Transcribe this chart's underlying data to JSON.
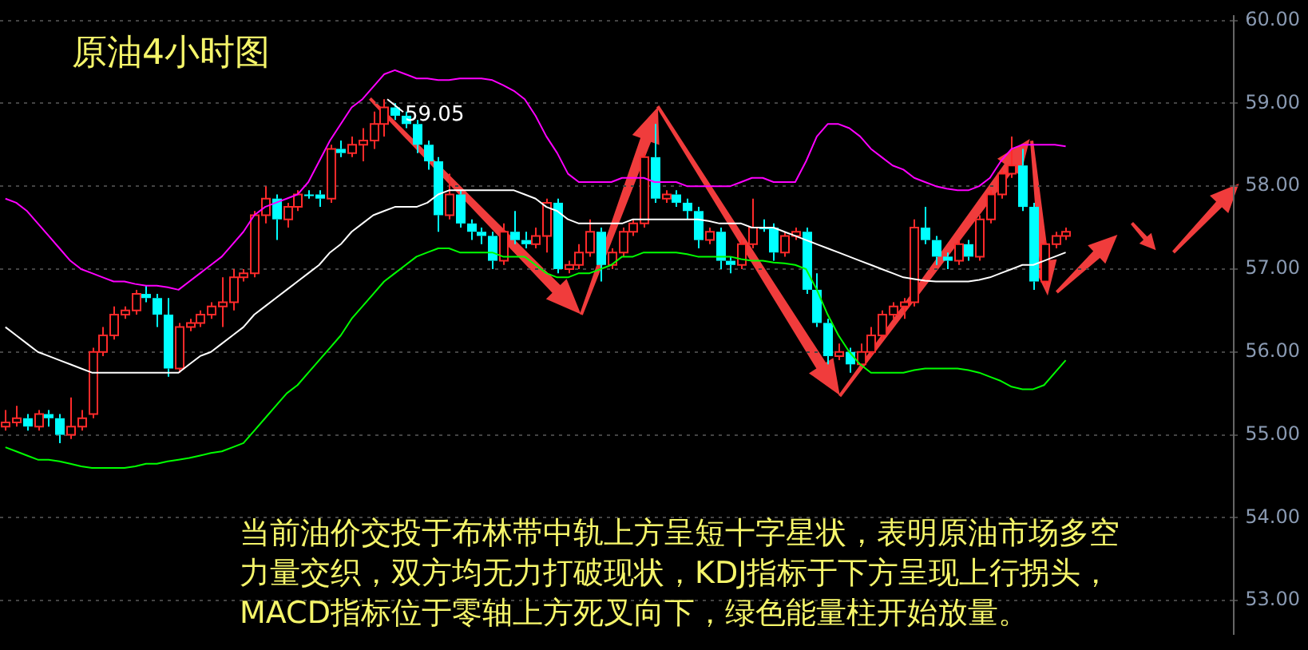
{
  "chart_data": {
    "type": "candlestick",
    "title": "原油4小时图",
    "annotations": [
      "59.05",
      "当前油价交投于布林带中轨上方呈短十字星状，表明原油市场多空力量交织，双方均无力打破现状，KDJ指标于下方呈现上行拐头，MACD指标位于零轴上方死叉向下，绿色能量柱开始放量。"
    ],
    "categories": [
      null,
      null,
      null,
      null,
      null,
      null,
      null,
      null,
      null,
      null,
      null,
      null,
      null,
      null,
      null,
      null,
      null,
      null,
      null,
      null,
      null,
      null,
      null,
      null,
      null,
      null,
      null,
      null,
      null,
      null,
      null,
      null,
      null,
      null,
      null,
      null,
      null,
      null,
      null,
      null,
      null,
      null,
      null,
      null,
      null,
      null,
      null,
      null,
      null,
      null,
      null,
      null,
      null,
      null,
      null,
      null,
      null,
      null,
      null,
      null,
      null,
      null,
      null,
      null,
      null,
      null,
      null,
      null,
      null,
      null,
      null,
      null,
      null,
      null,
      null,
      null,
      null,
      null,
      null,
      null,
      null,
      null,
      null,
      null,
      null,
      null,
      null,
      null,
      null,
      null,
      null,
      null,
      null,
      null,
      null,
      null,
      null,
      null,
      null
    ],
    "ohlc": [
      [
        55.1,
        55.3,
        55.05,
        55.15
      ],
      [
        55.15,
        55.35,
        55.1,
        55.2
      ],
      [
        55.2,
        55.25,
        55.05,
        55.1
      ],
      [
        55.1,
        55.3,
        55.05,
        55.25
      ],
      [
        55.25,
        55.3,
        55.1,
        55.2
      ],
      [
        55.2,
        55.25,
        54.9,
        55.0
      ],
      [
        55.0,
        55.45,
        54.95,
        55.1
      ],
      [
        55.1,
        55.3,
        55.05,
        55.2
      ],
      [
        55.25,
        56.05,
        55.2,
        56.0
      ],
      [
        56.0,
        56.3,
        55.95,
        56.2
      ],
      [
        56.2,
        56.55,
        56.15,
        56.45
      ],
      [
        56.45,
        56.55,
        56.4,
        56.5
      ],
      [
        56.5,
        56.75,
        56.45,
        56.7
      ],
      [
        56.7,
        56.8,
        56.6,
        56.65
      ],
      [
        56.65,
        56.7,
        56.3,
        56.45
      ],
      [
        56.45,
        56.65,
        55.7,
        55.8
      ],
      [
        55.8,
        56.35,
        55.75,
        56.3
      ],
      [
        56.3,
        56.4,
        56.25,
        56.35
      ],
      [
        56.35,
        56.5,
        56.3,
        56.45
      ],
      [
        56.45,
        56.6,
        56.4,
        56.55
      ],
      [
        56.55,
        56.9,
        56.3,
        56.6
      ],
      [
        56.6,
        57.0,
        56.5,
        56.9
      ],
      [
        56.9,
        57.0,
        56.85,
        56.95
      ],
      [
        56.95,
        57.7,
        56.9,
        57.65
      ],
      [
        57.65,
        58.0,
        57.55,
        57.85
      ],
      [
        57.85,
        57.9,
        57.35,
        57.6
      ],
      [
        57.6,
        57.8,
        57.5,
        57.75
      ],
      [
        57.75,
        57.95,
        57.7,
        57.9
      ],
      [
        57.9,
        57.95,
        57.85,
        57.9
      ],
      [
        57.9,
        57.95,
        57.75,
        57.85
      ],
      [
        57.85,
        58.5,
        57.8,
        58.45
      ],
      [
        58.45,
        58.55,
        58.35,
        58.4
      ],
      [
        58.4,
        58.6,
        58.35,
        58.5
      ],
      [
        58.5,
        58.7,
        58.3,
        58.55
      ],
      [
        58.55,
        58.9,
        58.45,
        58.75
      ],
      [
        58.75,
        59.05,
        58.6,
        58.95
      ],
      [
        58.95,
        59.0,
        58.8,
        58.85
      ],
      [
        58.85,
        58.9,
        58.7,
        58.75
      ],
      [
        58.75,
        58.8,
        58.4,
        58.5
      ],
      [
        58.5,
        58.55,
        58.2,
        58.3
      ],
      [
        58.3,
        58.35,
        57.45,
        57.65
      ],
      [
        57.65,
        58.15,
        57.6,
        57.9
      ],
      [
        57.9,
        57.95,
        57.5,
        57.55
      ],
      [
        57.55,
        57.6,
        57.35,
        57.45
      ],
      [
        57.45,
        57.5,
        57.3,
        57.4
      ],
      [
        57.4,
        57.45,
        57.0,
        57.1
      ],
      [
        57.1,
        57.55,
        57.05,
        57.45
      ],
      [
        57.45,
        57.7,
        57.3,
        57.35
      ],
      [
        57.35,
        57.45,
        57.25,
        57.3
      ],
      [
        57.3,
        57.5,
        57.25,
        57.4
      ],
      [
        57.4,
        57.85,
        57.2,
        57.8
      ],
      [
        57.8,
        57.85,
        56.95,
        57.0
      ],
      [
        57.0,
        57.1,
        56.95,
        57.05
      ],
      [
        57.05,
        57.3,
        57.0,
        57.2
      ],
      [
        57.2,
        57.6,
        57.15,
        57.45
      ],
      [
        57.45,
        57.5,
        56.85,
        57.05
      ],
      [
        57.05,
        57.25,
        57.0,
        57.2
      ],
      [
        57.2,
        57.5,
        57.15,
        57.45
      ],
      [
        57.45,
        57.6,
        57.4,
        57.55
      ],
      [
        57.55,
        58.4,
        57.5,
        58.35
      ],
      [
        58.35,
        58.75,
        57.8,
        57.85
      ],
      [
        57.85,
        57.95,
        57.8,
        57.9
      ],
      [
        57.9,
        57.95,
        57.75,
        57.8
      ],
      [
        57.8,
        57.85,
        57.6,
        57.7
      ],
      [
        57.7,
        57.75,
        57.25,
        57.35
      ],
      [
        57.35,
        57.5,
        57.3,
        57.45
      ],
      [
        57.45,
        57.5,
        57.0,
        57.1
      ],
      [
        57.1,
        57.15,
        56.95,
        57.05
      ],
      [
        57.05,
        57.35,
        57.0,
        57.3
      ],
      [
        57.3,
        57.85,
        57.25,
        57.5
      ],
      [
        57.5,
        57.6,
        57.45,
        57.5
      ],
      [
        57.5,
        57.55,
        57.1,
        57.2
      ],
      [
        57.2,
        57.45,
        57.15,
        57.4
      ],
      [
        57.4,
        57.5,
        57.35,
        57.45
      ],
      [
        57.45,
        57.5,
        56.7,
        56.75
      ],
      [
        56.75,
        56.95,
        56.3,
        56.35
      ],
      [
        56.35,
        56.4,
        55.85,
        55.95
      ],
      [
        55.95,
        56.1,
        55.9,
        56.0
      ],
      [
        56.0,
        56.05,
        55.75,
        55.85
      ],
      [
        55.85,
        56.1,
        55.8,
        56.0
      ],
      [
        56.0,
        56.3,
        55.95,
        56.2
      ],
      [
        56.2,
        56.5,
        56.15,
        56.45
      ],
      [
        56.45,
        56.6,
        56.4,
        56.55
      ],
      [
        56.55,
        56.65,
        56.4,
        56.6
      ],
      [
        56.6,
        57.6,
        56.55,
        57.5
      ],
      [
        57.5,
        57.75,
        57.3,
        57.35
      ],
      [
        57.35,
        57.4,
        57.05,
        57.15
      ],
      [
        57.15,
        57.2,
        57.0,
        57.1
      ],
      [
        57.1,
        57.35,
        57.05,
        57.3
      ],
      [
        57.3,
        57.35,
        57.1,
        57.15
      ],
      [
        57.15,
        57.65,
        57.1,
        57.6
      ],
      [
        57.6,
        57.95,
        57.55,
        57.9
      ],
      [
        57.9,
        58.2,
        57.85,
        58.15
      ],
      [
        58.15,
        58.6,
        58.1,
        58.25
      ],
      [
        58.25,
        58.45,
        57.7,
        57.75
      ],
      [
        57.75,
        57.8,
        56.75,
        56.85
      ],
      [
        56.85,
        57.35,
        56.8,
        57.3
      ],
      [
        57.3,
        57.45,
        57.25,
        57.4
      ],
      [
        57.4,
        57.5,
        57.35,
        57.45
      ]
    ],
    "series": [
      {
        "type": "line",
        "color": "#ff00ff",
        "values": [
          57.85,
          57.8,
          57.7,
          57.55,
          57.4,
          57.25,
          57.1,
          57.0,
          56.95,
          56.9,
          56.85,
          56.85,
          56.82,
          56.8,
          56.8,
          56.78,
          56.75,
          56.85,
          56.95,
          57.05,
          57.15,
          57.3,
          57.45,
          57.65,
          57.75,
          57.8,
          57.85,
          57.9,
          58.05,
          58.3,
          58.55,
          58.75,
          58.95,
          59.05,
          59.2,
          59.35,
          59.4,
          59.35,
          59.3,
          59.3,
          59.28,
          59.28,
          59.3,
          59.3,
          59.3,
          59.28,
          59.22,
          59.15,
          59.05,
          58.85,
          58.6,
          58.4,
          58.15,
          58.05,
          58.05,
          58.05,
          58.05,
          58.1,
          58.1,
          58.1,
          58.05,
          58.05,
          58.05,
          58.0,
          58.0,
          58.0,
          58.0,
          58.0,
          58.05,
          58.1,
          58.1,
          58.05,
          58.05,
          58.05,
          58.3,
          58.6,
          58.75,
          58.75,
          58.7,
          58.6,
          58.45,
          58.35,
          58.25,
          58.2,
          58.1,
          58.05,
          58.0,
          57.97,
          57.95,
          57.95,
          58.0,
          58.1,
          58.3,
          58.45,
          58.5,
          58.5,
          58.5,
          58.5,
          58.48
        ]
      },
      {
        "type": "line",
        "color": "#ffffff",
        "values": [
          56.3,
          56.2,
          56.1,
          56.0,
          55.95,
          55.9,
          55.85,
          55.8,
          55.75,
          55.75,
          55.75,
          55.75,
          55.75,
          55.75,
          55.75,
          55.75,
          55.75,
          55.85,
          55.95,
          56.0,
          56.1,
          56.2,
          56.3,
          56.45,
          56.55,
          56.65,
          56.75,
          56.85,
          56.95,
          57.05,
          57.2,
          57.3,
          57.45,
          57.55,
          57.65,
          57.7,
          57.75,
          57.75,
          57.75,
          57.8,
          57.9,
          57.95,
          57.95,
          57.95,
          57.95,
          57.95,
          57.95,
          57.95,
          57.9,
          57.85,
          57.75,
          57.7,
          57.6,
          57.55,
          57.55,
          57.55,
          57.55,
          57.55,
          57.6,
          57.6,
          57.6,
          57.6,
          57.6,
          57.6,
          57.6,
          57.58,
          57.55,
          57.55,
          57.55,
          57.5,
          57.5,
          57.5,
          57.45,
          57.4,
          57.35,
          57.3,
          57.25,
          57.2,
          57.15,
          57.1,
          57.05,
          57.0,
          56.95,
          56.9,
          56.88,
          56.86,
          56.85,
          56.85,
          56.85,
          56.85,
          56.87,
          56.9,
          56.95,
          57.0,
          57.05,
          57.05,
          57.1,
          57.15,
          57.2
        ]
      },
      {
        "type": "line",
        "color": "#00ff00",
        "values": [
          54.85,
          54.8,
          54.75,
          54.7,
          54.7,
          54.68,
          54.65,
          54.62,
          54.6,
          54.6,
          54.6,
          54.6,
          54.62,
          54.65,
          54.65,
          54.68,
          54.7,
          54.72,
          54.75,
          54.78,
          54.8,
          54.85,
          54.9,
          55.05,
          55.2,
          55.35,
          55.5,
          55.6,
          55.75,
          55.9,
          56.05,
          56.2,
          56.4,
          56.55,
          56.7,
          56.85,
          56.95,
          57.05,
          57.15,
          57.2,
          57.25,
          57.25,
          57.2,
          57.2,
          57.2,
          57.2,
          57.15,
          57.15,
          57.15,
          57.05,
          56.95,
          56.9,
          56.9,
          56.95,
          56.95,
          57.0,
          57.05,
          57.15,
          57.15,
          57.2,
          57.2,
          57.2,
          57.2,
          57.18,
          57.15,
          57.15,
          57.15,
          57.15,
          57.12,
          57.1,
          57.1,
          57.08,
          57.07,
          57.05,
          57.0,
          56.75,
          56.45,
          56.2,
          56.0,
          55.85,
          55.75,
          55.75,
          55.75,
          55.75,
          55.78,
          55.8,
          55.8,
          55.8,
          55.8,
          55.78,
          55.75,
          55.7,
          55.65,
          55.58,
          55.55,
          55.55,
          55.6,
          55.75,
          55.9
        ]
      }
    ],
    "ylim": [
      52.6,
      60.05
    ],
    "yticks": [
      {
        "value": 53,
        "label": "53.00"
      },
      {
        "value": 54,
        "label": "54.00"
      },
      {
        "value": 55,
        "label": "55.00"
      },
      {
        "value": 56,
        "label": "56.00"
      },
      {
        "value": 57,
        "label": "57.00"
      },
      {
        "value": 58,
        "label": "58.00"
      },
      {
        "value": 59,
        "label": "59.00"
      },
      {
        "value": 60,
        "label": "60.00"
      }
    ],
    "grid": "y"
  }
}
